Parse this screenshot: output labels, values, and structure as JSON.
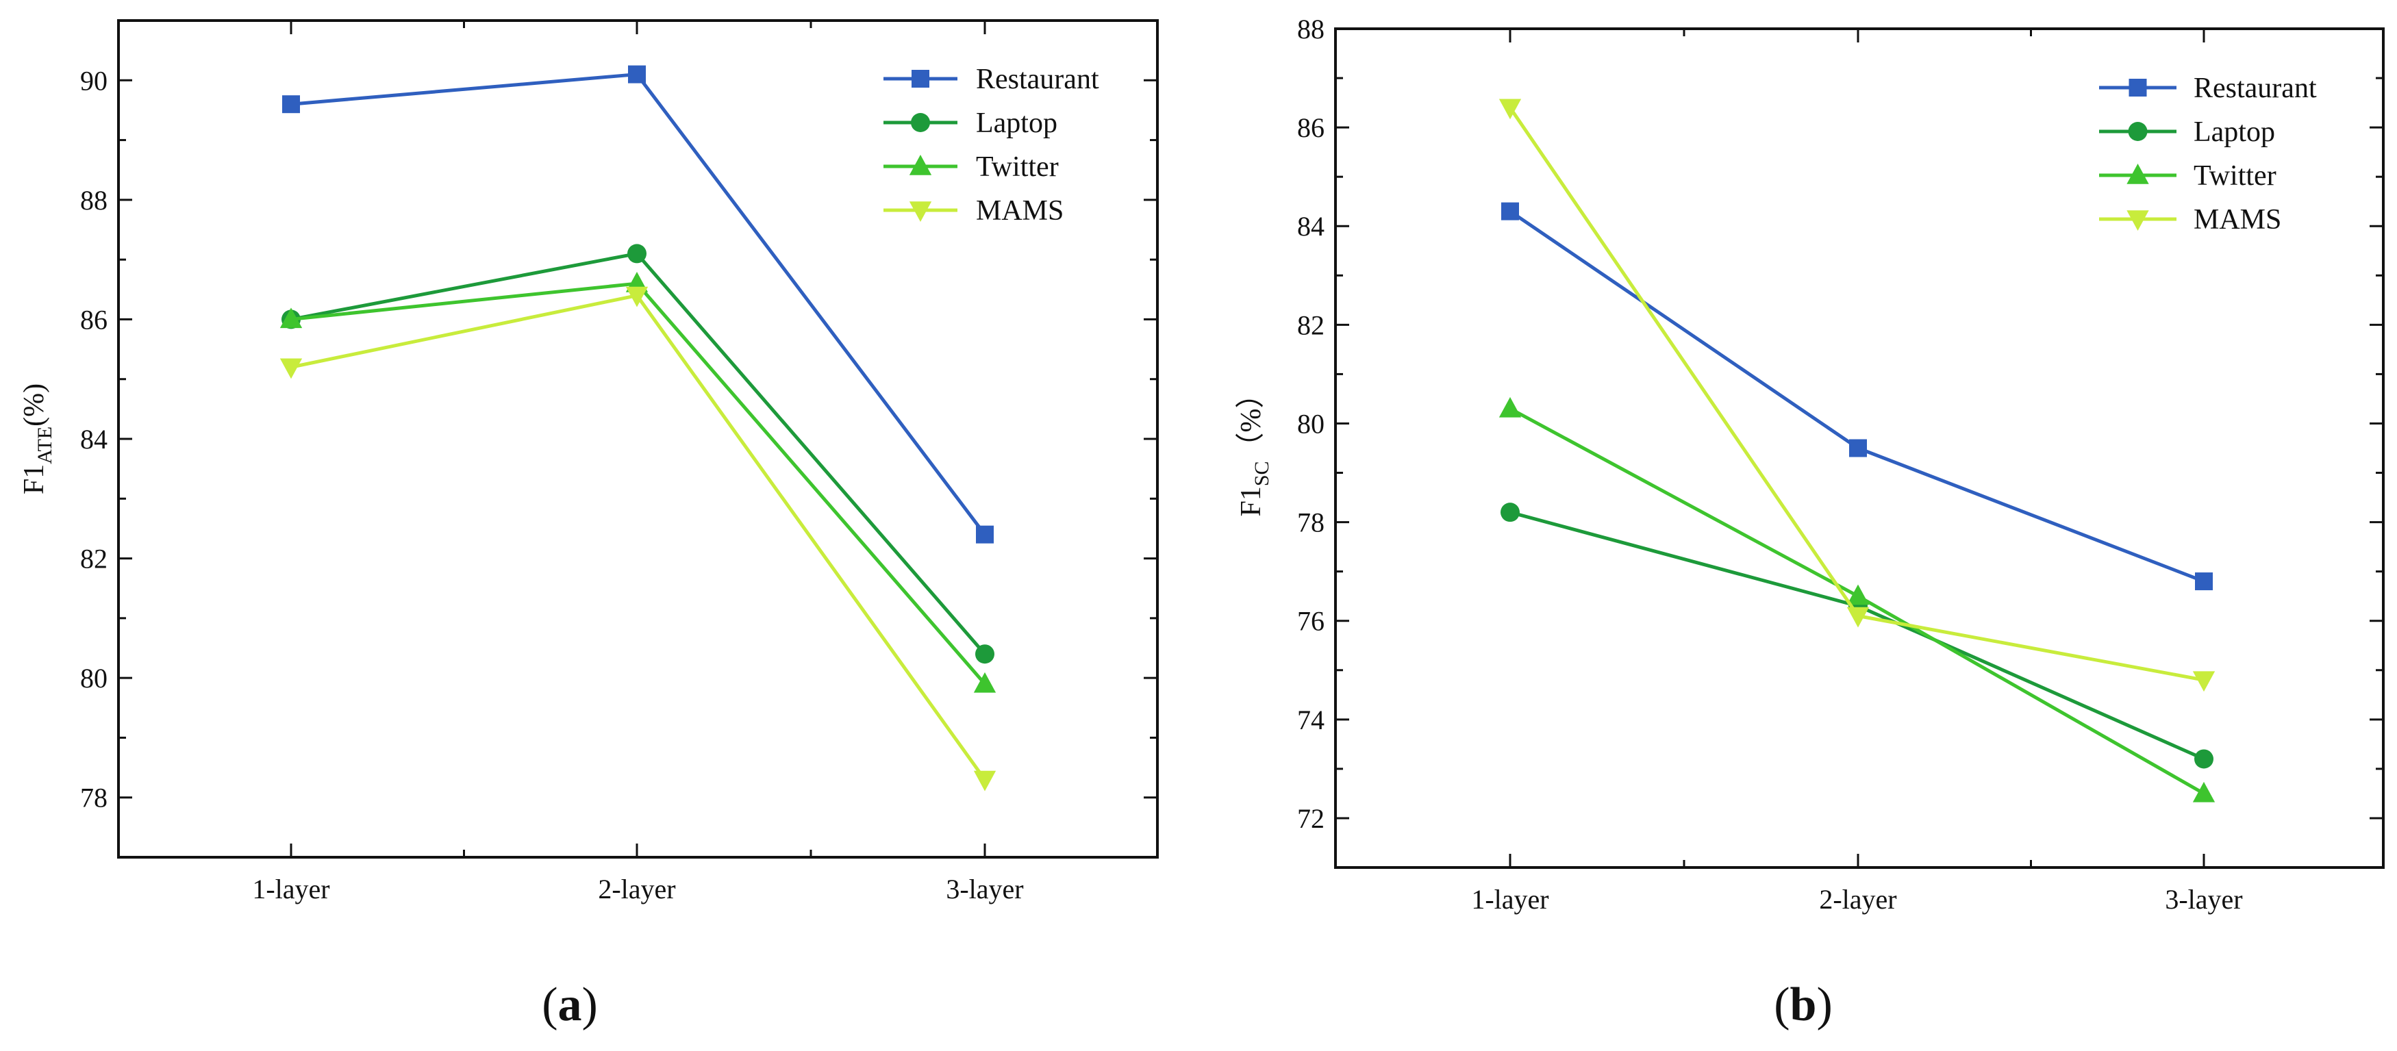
{
  "figure": {
    "panel_a_label": "a",
    "panel_b_label": "b"
  },
  "chart_data": [
    {
      "type": "line",
      "panel": "a",
      "ylabel_main": "F1",
      "ylabel_sub": "ATE",
      "ylabel_suffix": "(%)",
      "categories": [
        "1-layer",
        "2-layer",
        "3-layer"
      ],
      "ylim": [
        77,
        91
      ],
      "yticks": [
        78,
        80,
        82,
        84,
        86,
        88,
        90
      ],
      "legend_position": "top-right",
      "series": [
        {
          "name": "Restaurant",
          "marker": "square",
          "color": "#2f5fbf",
          "values": [
            89.6,
            90.1,
            82.4
          ]
        },
        {
          "name": "Laptop",
          "marker": "circle",
          "color": "#1d9a3a",
          "values": [
            86.0,
            87.1,
            80.4
          ]
        },
        {
          "name": "Twitter",
          "marker": "triangle-up",
          "color": "#3ec42e",
          "values": [
            86.0,
            86.6,
            79.9
          ]
        },
        {
          "name": "MAMS",
          "marker": "triangle-down",
          "color": "#c8ec3c",
          "values": [
            85.2,
            86.4,
            78.3
          ]
        }
      ]
    },
    {
      "type": "line",
      "panel": "b",
      "ylabel_main": "F1",
      "ylabel_sub": "SC",
      "ylabel_suffix": "（%）",
      "categories": [
        "1-layer",
        "2-layer",
        "3-layer"
      ],
      "ylim": [
        71,
        88
      ],
      "yticks": [
        72,
        74,
        76,
        78,
        80,
        82,
        84,
        86,
        88
      ],
      "legend_position": "top-right",
      "series": [
        {
          "name": "Restaurant",
          "marker": "square",
          "color": "#2f5fbf",
          "values": [
            84.3,
            79.5,
            76.8
          ]
        },
        {
          "name": "Laptop",
          "marker": "circle",
          "color": "#1d9a3a",
          "values": [
            78.2,
            76.3,
            73.2
          ]
        },
        {
          "name": "Twitter",
          "marker": "triangle-up",
          "color": "#3ec42e",
          "values": [
            80.3,
            76.5,
            72.5
          ]
        },
        {
          "name": "MAMS",
          "marker": "triangle-down",
          "color": "#c8ec3c",
          "values": [
            86.4,
            76.1,
            74.8
          ]
        }
      ]
    }
  ]
}
